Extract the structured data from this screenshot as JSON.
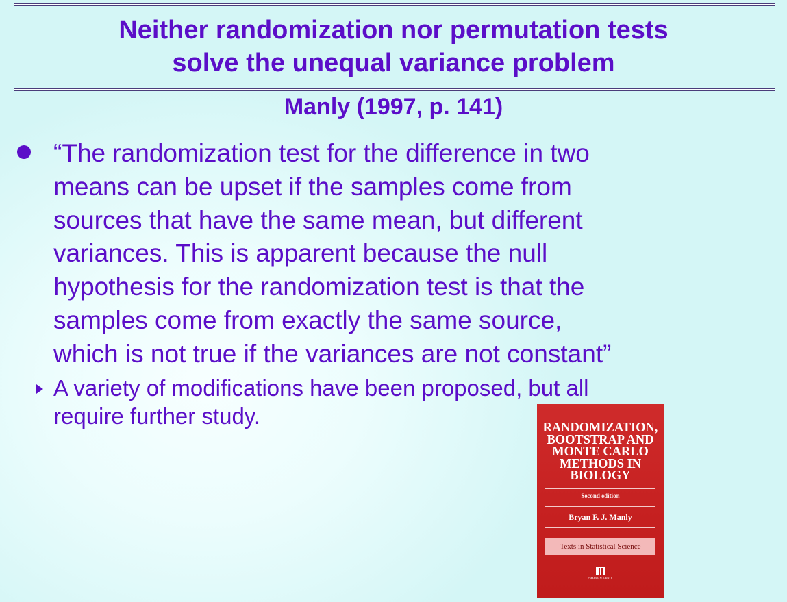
{
  "slide": {
    "title_line1": "Neither randomization nor permutation tests",
    "title_line2": "solve the unequal variance problem",
    "subtitle": "Manly (1997, p. 141)",
    "quote_lines": [
      "“The randomization test for the difference in two",
      "means can be upset if the samples come from",
      "sources that have the same mean, but different",
      "variances. This is apparent because the null",
      "hypothesis for the randomization test is that the",
      "samples come from exactly the same source,",
      "which is not true if the variances are not constant”"
    ],
    "sub_lines": [
      "A variety of modifications have been proposed, but all",
      "require further study."
    ]
  },
  "book": {
    "title_lines": [
      "RANDOMIZATION,",
      "BOOTSTRAP AND",
      "MONTE CARLO",
      "METHODS IN",
      "BIOLOGY"
    ],
    "edition": "Second edition",
    "author": "Bryan F. J. Manly",
    "series": "Texts in Statistical Science",
    "publisher": "CHAPMAN & HALL"
  },
  "colors": {
    "text": "#5b0ec8",
    "background": "#e8fbfb",
    "book_cover": "#c52020"
  }
}
